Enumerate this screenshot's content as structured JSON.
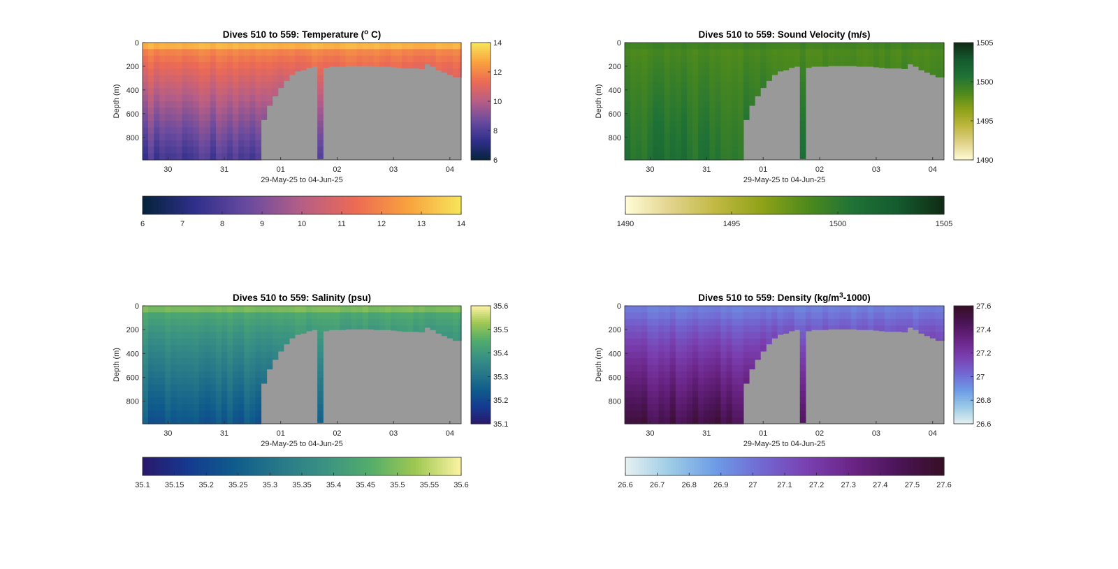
{
  "figure_title": "",
  "chart_data": [
    {
      "type": "heatmap",
      "title_main": "Dives 510 to 559: Temperature (",
      "title_sup": "o",
      "title_end": " C)",
      "xlabel": "29-May-25 to 04-Jun-25",
      "ylabel": "Depth (m)",
      "xticks": [
        "30",
        "31",
        "01",
        "02",
        "03",
        "04"
      ],
      "yticks": [
        "0",
        "200",
        "400",
        "600",
        "800"
      ],
      "ylim": [
        0,
        990
      ],
      "x_range_days": [
        29.55,
        35.2
      ],
      "colormap": "thermal",
      "colormap_stops": [
        "#04233a",
        "#302f8c",
        "#6a4b9f",
        "#b65e86",
        "#ec6a55",
        "#f9a13e",
        "#f6e65a"
      ],
      "clim": [
        6,
        14
      ],
      "colorbar_ticks": [
        "6",
        "7",
        "8",
        "9",
        "10",
        "11",
        "12",
        "13",
        "14"
      ],
      "side_colorbar_ticks": [
        "14",
        "12",
        "10",
        "8",
        "6"
      ],
      "surface_value": 12.6,
      "deep_value": 7.8,
      "no_data_color": "#999999",
      "dive_depth_profile": {
        "x_day": [
          31.6,
          31.7,
          31.8,
          31.9,
          32.0,
          32.1,
          32.2,
          32.3,
          32.4,
          32.5,
          32.6,
          32.7,
          32.8,
          32.9,
          33.0,
          33.1,
          33.2,
          33.3,
          33.4,
          33.5,
          33.6,
          33.7,
          33.8,
          33.9,
          34.0,
          34.1,
          34.2,
          34.3,
          34.4,
          34.5,
          34.6,
          34.7,
          34.8,
          34.9,
          35.0,
          35.1
        ],
        "max_depth_m": [
          990,
          650,
          530,
          450,
          380,
          320,
          270,
          240,
          230,
          210,
          200,
          980,
          210,
          200,
          200,
          200,
          195,
          195,
          195,
          195,
          195,
          200,
          200,
          200,
          205,
          210,
          215,
          215,
          215,
          220,
          180,
          200,
          230,
          250,
          270,
          290
        ]
      }
    },
    {
      "type": "heatmap",
      "title_main": "Dives 510 to 559: Sound Velocity (m/s)",
      "title_sup": "",
      "title_end": "",
      "xlabel": "29-May-25 to 04-Jun-25",
      "ylabel": "Depth (m)",
      "xticks": [
        "30",
        "31",
        "01",
        "02",
        "03",
        "04"
      ],
      "yticks": [
        "0",
        "200",
        "400",
        "600",
        "800"
      ],
      "ylim": [
        0,
        990
      ],
      "x_range_days": [
        29.55,
        35.2
      ],
      "colormap": "speed",
      "colormap_stops": [
        "#fffcd6",
        "#e2d38c",
        "#c0b842",
        "#8fa218",
        "#4e8a1c",
        "#1f7236",
        "#145a2e",
        "#102b14"
      ],
      "clim": [
        1490,
        1505
      ],
      "colorbar_ticks": [
        "1490",
        "1495",
        "1500",
        "1505"
      ],
      "side_colorbar_ticks": [
        "1505",
        "1500",
        "1495",
        "1490"
      ],
      "surface_value": 1498.5,
      "deep_value": 1500.6,
      "no_data_color": "#999999",
      "dive_depth_profile": {
        "x_day": [
          31.6,
          31.7,
          31.8,
          31.9,
          32.0,
          32.1,
          32.2,
          32.3,
          32.4,
          32.5,
          32.6,
          32.7,
          32.8,
          32.9,
          33.0,
          33.1,
          33.2,
          33.3,
          33.4,
          33.5,
          33.6,
          33.7,
          33.8,
          33.9,
          34.0,
          34.1,
          34.2,
          34.3,
          34.4,
          34.5,
          34.6,
          34.7,
          34.8,
          34.9,
          35.0,
          35.1
        ],
        "max_depth_m": [
          990,
          650,
          530,
          450,
          380,
          320,
          270,
          240,
          230,
          210,
          200,
          980,
          210,
          200,
          200,
          200,
          195,
          195,
          195,
          195,
          195,
          200,
          200,
          200,
          205,
          210,
          215,
          215,
          215,
          220,
          180,
          200,
          230,
          250,
          270,
          290
        ]
      }
    },
    {
      "type": "heatmap",
      "title_main": "Dives 510 to 559: Salinity (psu)",
      "title_sup": "",
      "title_end": "",
      "xlabel": "29-May-25 to 04-Jun-25",
      "ylabel": "Depth (m)",
      "xticks": [
        "30",
        "31",
        "01",
        "02",
        "03",
        "04"
      ],
      "yticks": [
        "0",
        "200",
        "400",
        "600",
        "800"
      ],
      "ylim": [
        0,
        990
      ],
      "x_range_days": [
        29.55,
        35.2
      ],
      "colormap": "haline",
      "colormap_stops": [
        "#2a186c",
        "#15398f",
        "#0f5b8c",
        "#277889",
        "#3a9283",
        "#53ad6b",
        "#9fc852",
        "#fcf3a4"
      ],
      "clim": [
        35.1,
        35.6
      ],
      "colorbar_ticks": [
        "35.1",
        "35.15",
        "35.2",
        "35.25",
        "35.3",
        "35.35",
        "35.4",
        "35.45",
        "35.5",
        "35.55",
        "35.6"
      ],
      "side_colorbar_ticks": [
        "35.6",
        "35.5",
        "35.4",
        "35.3",
        "35.2",
        "35.1"
      ],
      "surface_value": 35.47,
      "deep_value": 35.24,
      "no_data_color": "#999999",
      "dive_depth_profile": {
        "x_day": [
          31.6,
          31.7,
          31.8,
          31.9,
          32.0,
          32.1,
          32.2,
          32.3,
          32.4,
          32.5,
          32.6,
          32.7,
          32.8,
          32.9,
          33.0,
          33.1,
          33.2,
          33.3,
          33.4,
          33.5,
          33.6,
          33.7,
          33.8,
          33.9,
          34.0,
          34.1,
          34.2,
          34.3,
          34.4,
          34.5,
          34.6,
          34.7,
          34.8,
          34.9,
          35.0,
          35.1
        ],
        "max_depth_m": [
          990,
          650,
          530,
          450,
          380,
          320,
          270,
          240,
          230,
          210,
          200,
          980,
          210,
          200,
          200,
          200,
          195,
          195,
          195,
          195,
          195,
          200,
          200,
          200,
          205,
          210,
          215,
          215,
          215,
          220,
          180,
          200,
          230,
          250,
          270,
          290
        ]
      }
    },
    {
      "type": "heatmap",
      "title_main": "Dives 510 to 559: Density (kg/m",
      "title_sup": "3",
      "title_end": "-1000)",
      "xlabel": "29-May-25 to 04-Jun-25",
      "ylabel": "Depth (m)",
      "xticks": [
        "30",
        "31",
        "01",
        "02",
        "03",
        "04"
      ],
      "yticks": [
        "0",
        "200",
        "400",
        "600",
        "800"
      ],
      "ylim": [
        0,
        990
      ],
      "x_range_days": [
        29.55,
        35.2
      ],
      "colormap": "dense",
      "colormap_stops": [
        "#e6f1f1",
        "#9ccbe6",
        "#6d9be6",
        "#7268d2",
        "#7a3fb0",
        "#6a2485",
        "#4b1457",
        "#360e24"
      ],
      "clim": [
        26.6,
        27.6
      ],
      "colorbar_ticks": [
        "26.6",
        "26.7",
        "26.8",
        "26.9",
        "27",
        "27.1",
        "27.2",
        "27.3",
        "27.4",
        "27.5",
        "27.6"
      ],
      "side_colorbar_ticks": [
        "27.6",
        "27.4",
        "27.2",
        "27",
        "26.8",
        "26.6"
      ],
      "surface_value": 26.92,
      "deep_value": 27.5,
      "no_data_color": "#999999",
      "dive_depth_profile": {
        "x_day": [
          31.6,
          31.7,
          31.8,
          31.9,
          32.0,
          32.1,
          32.2,
          32.3,
          32.4,
          32.5,
          32.6,
          32.7,
          32.8,
          32.9,
          33.0,
          33.1,
          33.2,
          33.3,
          33.4,
          33.5,
          33.6,
          33.7,
          33.8,
          33.9,
          34.0,
          34.1,
          34.2,
          34.3,
          34.4,
          34.5,
          34.6,
          34.7,
          34.8,
          34.9,
          35.0,
          35.1
        ],
        "max_depth_m": [
          990,
          650,
          530,
          450,
          380,
          320,
          270,
          240,
          230,
          210,
          200,
          980,
          210,
          200,
          200,
          200,
          195,
          195,
          195,
          195,
          195,
          200,
          200,
          200,
          205,
          210,
          215,
          215,
          215,
          220,
          180,
          200,
          230,
          250,
          270,
          290
        ]
      }
    }
  ]
}
